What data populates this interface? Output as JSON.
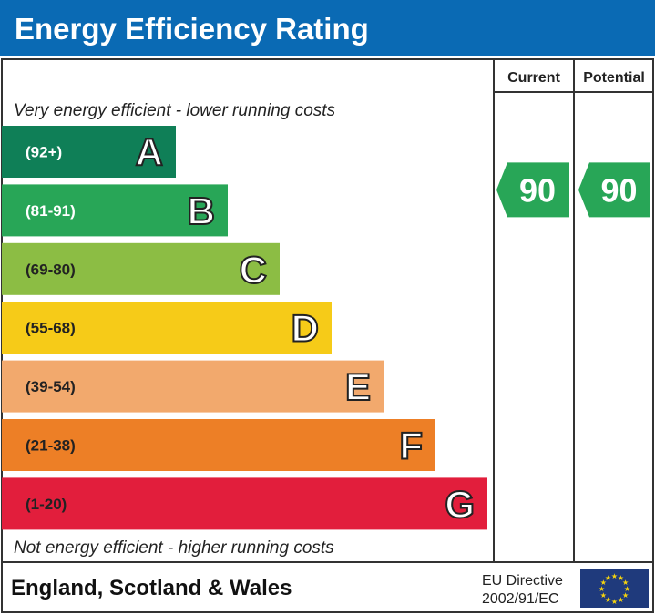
{
  "title": "Energy Efficiency Rating",
  "columns": {
    "current": "Current",
    "potential": "Potential"
  },
  "top_note": "Very energy efficient - lower running costs",
  "bottom_note": "Not energy efficient - higher running costs",
  "footer": {
    "region": "England, Scotland & Wales",
    "directive_line1": "EU Directive",
    "directive_line2": "2002/91/EC"
  },
  "colors": {
    "title_bg": "#0a6ab4",
    "eu_flag": "#1f3a7c",
    "eu_stars": "#f6d40e"
  },
  "chart_data": {
    "type": "bar",
    "bands": [
      {
        "letter": "A",
        "range": "(92+)",
        "color": "#0f7f57"
      },
      {
        "letter": "B",
        "range": "(81-91)",
        "color": "#28a657"
      },
      {
        "letter": "C",
        "range": "(69-80)",
        "color": "#8cbd44"
      },
      {
        "letter": "D",
        "range": "(55-68)",
        "color": "#f6cb18"
      },
      {
        "letter": "E",
        "range": "(39-54)",
        "color": "#f2a96d"
      },
      {
        "letter": "F",
        "range": "(21-38)",
        "color": "#ed7f26"
      },
      {
        "letter": "G",
        "range": "(1-20)",
        "color": "#e21e3c"
      }
    ],
    "current": {
      "value": 90,
      "band": "B",
      "color": "#28a657"
    },
    "potential": {
      "value": 90,
      "band": "B",
      "color": "#28a657"
    }
  }
}
